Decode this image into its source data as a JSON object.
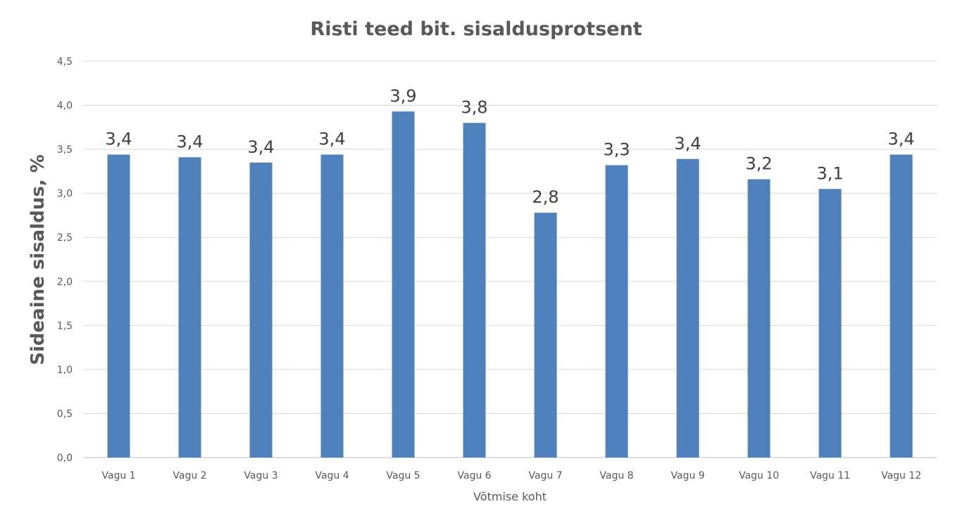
{
  "chart_data": {
    "type": "bar",
    "title": "Risti teed bit. sisaldusprotsent",
    "xlabel": "Võtmise koht",
    "ylabel": "Sideaine sisaldus, %",
    "categories": [
      "Vagu 1",
      "Vagu 2",
      "Vagu 3",
      "Vagu 4",
      "Vagu 5",
      "Vagu 6",
      "Vagu 7",
      "Vagu 8",
      "Vagu 9",
      "Vagu 10",
      "Vagu 11",
      "Vagu 12"
    ],
    "values": [
      3.44,
      3.41,
      3.35,
      3.44,
      3.93,
      3.8,
      2.78,
      3.32,
      3.39,
      3.16,
      3.05,
      3.44
    ],
    "data_labels": [
      "3,4",
      "3,4",
      "3,4",
      "3,4",
      "3,9",
      "3,8",
      "2,8",
      "3,3",
      "3,4",
      "3,2",
      "3,1",
      "3,4"
    ],
    "ylim": [
      0,
      4.5
    ],
    "yticks": [
      0,
      0.5,
      1.0,
      1.5,
      2.0,
      2.5,
      3.0,
      3.5,
      4.0,
      4.5
    ],
    "ytick_labels": [
      "0,0",
      "0,5",
      "1,0",
      "1,5",
      "2,0",
      "2,5",
      "3,0",
      "3,5",
      "4,0",
      "4,5"
    ],
    "grid": true,
    "legend": "none",
    "colors": {
      "bar": "#4f81bd",
      "grid": "#d9d9d9",
      "axis": "#bfbfbf",
      "text": "#595959"
    }
  }
}
